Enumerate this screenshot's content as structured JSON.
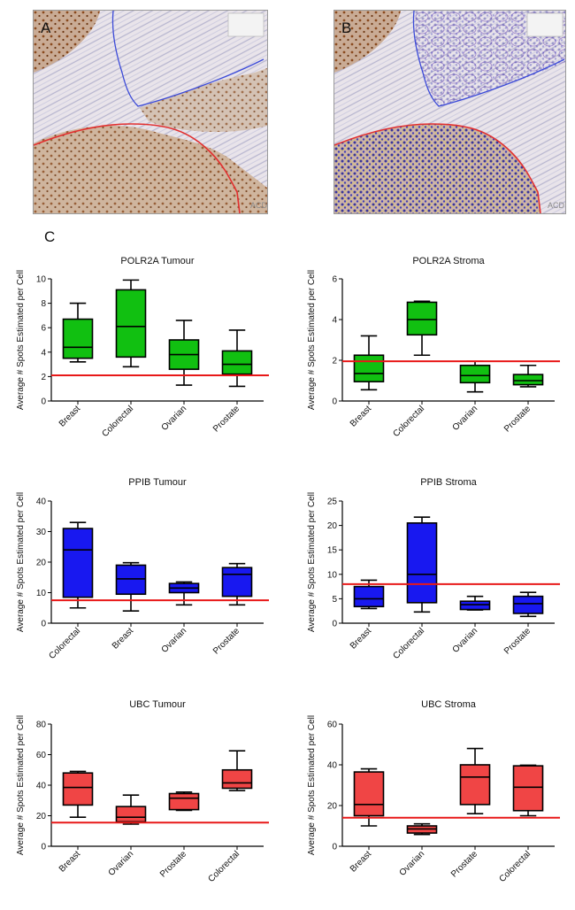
{
  "panels": {
    "a": {
      "letter": "A",
      "logo": "ACD"
    },
    "b": {
      "letter": "B",
      "logo": "ACD"
    },
    "c": {
      "letter": "C"
    }
  },
  "colors": {
    "green": "#11c011",
    "blue": "#1818f0",
    "red": "#f04545",
    "threshold": "#e81818",
    "tumour_outline": "#e23030",
    "stroma_outline": "#3b4ad8"
  },
  "chart_data": [
    {
      "type": "box",
      "title": "POLR2A Tumour",
      "ylabel": "Average # Spots Estimated per Cell",
      "ylim": [
        0,
        10
      ],
      "yticks": [
        0,
        2,
        4,
        6,
        8,
        10
      ],
      "categories": [
        "Breast",
        "Colorectal",
        "Ovarian",
        "Prostate"
      ],
      "boxes": [
        {
          "min": 3.2,
          "q1": 3.5,
          "median": 4.4,
          "q3": 6.7,
          "max": 8.0
        },
        {
          "min": 2.8,
          "q1": 3.6,
          "median": 6.1,
          "q3": 9.1,
          "max": 9.9
        },
        {
          "min": 1.3,
          "q1": 2.6,
          "median": 3.8,
          "q3": 5.0,
          "max": 6.6
        },
        {
          "min": 1.2,
          "q1": 2.2,
          "median": 3.0,
          "q3": 4.1,
          "max": 5.8
        }
      ],
      "threshold": 2.1,
      "color": "#11c011"
    },
    {
      "type": "box",
      "title": "POLR2A Stroma",
      "ylabel": "Average # Spots Estimated per Cell",
      "ylim": [
        0,
        6
      ],
      "yticks": [
        0,
        2,
        4,
        6
      ],
      "categories": [
        "Breast",
        "Colorectal",
        "Ovarian",
        "Prostate"
      ],
      "boxes": [
        {
          "min": 0.55,
          "q1": 0.95,
          "median": 1.35,
          "q3": 2.25,
          "max": 3.2
        },
        {
          "min": 2.25,
          "q1": 3.25,
          "median": 4.0,
          "q3": 4.85,
          "max": 4.9
        },
        {
          "min": 0.45,
          "q1": 0.9,
          "median": 1.25,
          "q3": 1.75,
          "max": 1.95
        },
        {
          "min": 0.7,
          "q1": 0.8,
          "median": 1.0,
          "q3": 1.3,
          "max": 1.75
        }
      ],
      "threshold": 1.95,
      "color": "#11c011"
    },
    {
      "type": "box",
      "title": "PPIB Tumour",
      "ylabel": "Average # Spots Estimated per Cell",
      "ylim": [
        0,
        40
      ],
      "yticks": [
        0,
        10,
        20,
        30,
        40
      ],
      "categories": [
        "Colorectal",
        "Breast",
        "Ovarian",
        "Prostate"
      ],
      "boxes": [
        {
          "min": 5.0,
          "q1": 8.5,
          "median": 24.0,
          "q3": 31.0,
          "max": 33.0
        },
        {
          "min": 4.0,
          "q1": 9.5,
          "median": 14.5,
          "q3": 19.0,
          "max": 19.8
        },
        {
          "min": 6.0,
          "q1": 10.0,
          "median": 11.5,
          "q3": 13.0,
          "max": 13.5
        },
        {
          "min": 6.0,
          "q1": 8.8,
          "median": 16.0,
          "q3": 18.2,
          "max": 19.5
        }
      ],
      "threshold": 7.5,
      "color": "#1818f0"
    },
    {
      "type": "box",
      "title": "PPIB Stroma",
      "ylabel": "Average # Spots Estimated per Cell",
      "ylim": [
        0,
        25
      ],
      "yticks": [
        0,
        5,
        10,
        15,
        20,
        25
      ],
      "categories": [
        "Breast",
        "Colorectal",
        "Ovarian",
        "Prostate"
      ],
      "boxes": [
        {
          "min": 3.0,
          "q1": 3.4,
          "median": 5.0,
          "q3": 7.5,
          "max": 8.8
        },
        {
          "min": 2.3,
          "q1": 4.2,
          "median": 10.0,
          "q3": 20.5,
          "max": 21.7
        },
        {
          "min": 2.7,
          "q1": 2.8,
          "median": 3.8,
          "q3": 4.5,
          "max": 5.5
        },
        {
          "min": 1.4,
          "q1": 2.0,
          "median": 4.0,
          "q3": 5.5,
          "max": 6.3
        }
      ],
      "threshold": 8.0,
      "color": "#1818f0"
    },
    {
      "type": "box",
      "title": "UBC Tumour",
      "ylabel": "Average # Spots Estimated per Cell",
      "ylim": [
        0,
        80
      ],
      "yticks": [
        0,
        20,
        40,
        60,
        80
      ],
      "categories": [
        "Breast",
        "Ovarian",
        "Prostate",
        "Colorectal"
      ],
      "boxes": [
        {
          "min": 19.0,
          "q1": 27.0,
          "median": 38.5,
          "q3": 48.0,
          "max": 49.0
        },
        {
          "min": 14.5,
          "q1": 16.0,
          "median": 19.0,
          "q3": 26.0,
          "max": 33.5
        },
        {
          "min": 23.5,
          "q1": 24.0,
          "median": 31.5,
          "q3": 34.5,
          "max": 35.5
        },
        {
          "min": 36.5,
          "q1": 38.0,
          "median": 41.5,
          "q3": 50.0,
          "max": 62.5
        }
      ],
      "threshold": 15.5,
      "color": "#f04545"
    },
    {
      "type": "box",
      "title": "UBC Stroma",
      "ylabel": "Average # Spots Estimated per Cell",
      "ylim": [
        0,
        60
      ],
      "yticks": [
        0,
        20,
        40,
        60
      ],
      "categories": [
        "Breast",
        "Ovarian",
        "Prostate",
        "Colorectal"
      ],
      "boxes": [
        {
          "min": 10.0,
          "q1": 15.0,
          "median": 20.5,
          "q3": 36.5,
          "max": 38.0
        },
        {
          "min": 5.8,
          "q1": 6.5,
          "median": 8.5,
          "q3": 10.0,
          "max": 11.0
        },
        {
          "min": 16.0,
          "q1": 20.5,
          "median": 34.0,
          "q3": 40.0,
          "max": 48.0
        },
        {
          "min": 15.0,
          "q1": 17.5,
          "median": 29.0,
          "q3": 39.5,
          "max": 39.8
        }
      ],
      "threshold": 14.0,
      "color": "#f04545"
    }
  ]
}
